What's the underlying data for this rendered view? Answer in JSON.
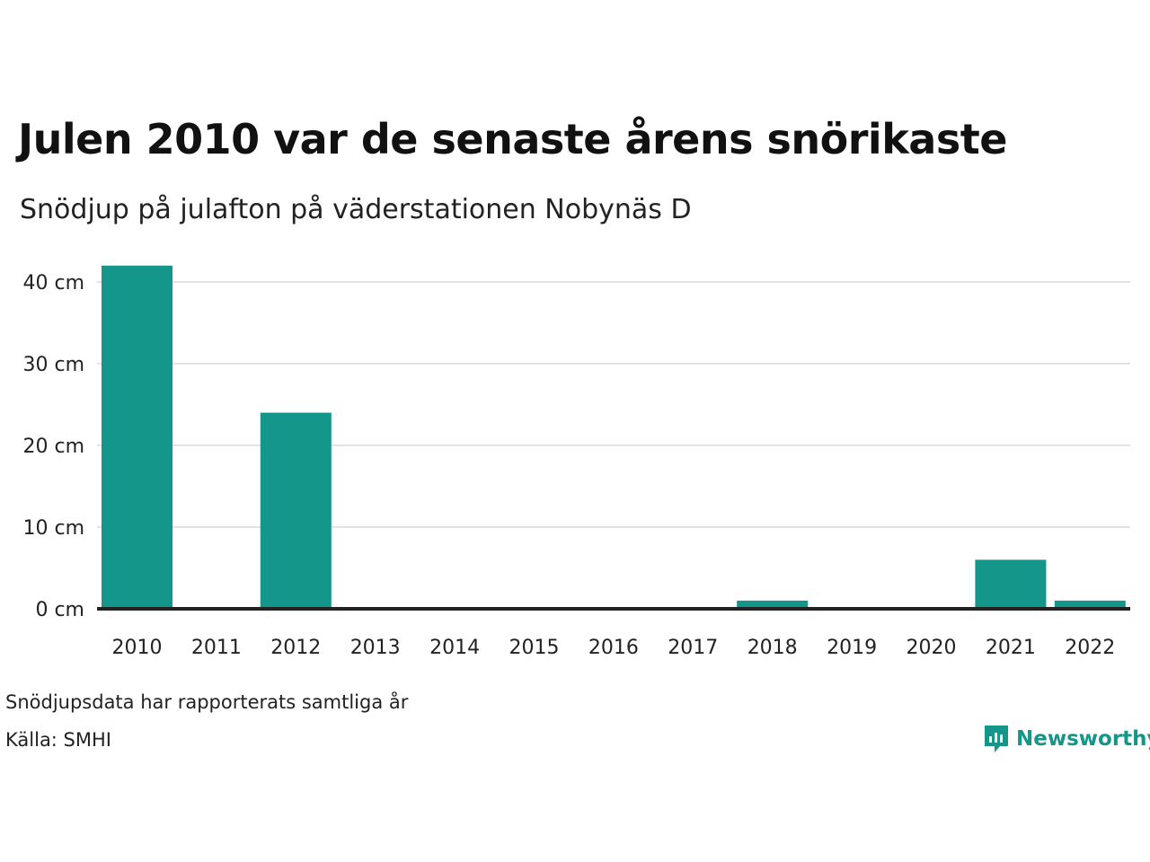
{
  "title": "Julen 2010 var de senaste årens snörikaste",
  "subtitle": "Snödjup på julafton på väderstationen Nobynäs D",
  "chart_data": {
    "type": "bar",
    "categories": [
      "2010",
      "2011",
      "2012",
      "2013",
      "2014",
      "2015",
      "2016",
      "2017",
      "2018",
      "2019",
      "2020",
      "2021",
      "2022"
    ],
    "values": [
      42,
      0,
      24,
      0,
      0,
      0,
      0,
      0,
      1,
      0,
      0,
      6,
      1
    ],
    "unit": "cm",
    "yticks": [
      0,
      10,
      20,
      30,
      40
    ],
    "ylim": [
      0,
      42
    ],
    "grid": true,
    "bar_color": "#14968a"
  },
  "notes": {
    "line1": "Snödjupsdata har rapporterats samtliga år",
    "line2": "Källa: SMHI"
  },
  "brand": {
    "name": "Newsworthy",
    "icon": "newsworthy-logo-icon",
    "color": "#14968a"
  }
}
